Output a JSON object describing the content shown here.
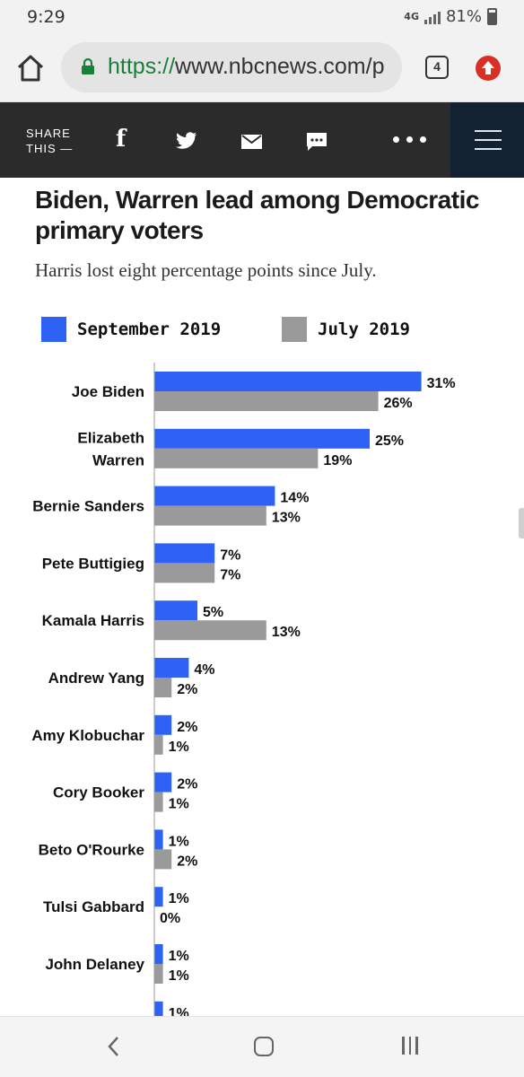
{
  "status_bar": {
    "time": "9:29",
    "network": "4G",
    "battery": "81%"
  },
  "browser": {
    "url_scheme": "https://",
    "url_rest": "www.nbcnews.com/p",
    "tab_count": "4"
  },
  "share_bar": {
    "label_line1": "SHARE",
    "label_line2": "THIS —",
    "facebook_glyph": "f",
    "icons": [
      "facebook-icon",
      "twitter-icon",
      "email-icon",
      "sms-icon",
      "more-icon",
      "menu-icon"
    ]
  },
  "article": {
    "headline": "Biden, Warren lead among Democratic primary voters",
    "subhead": "Harris lost eight percentage points since July."
  },
  "colors": {
    "september": "#2d62f5",
    "july": "#9a9a9a",
    "share_bar_bg": "#2b2b2b",
    "menu_bg": "#132233"
  },
  "chart_data": {
    "type": "bar",
    "orientation": "horizontal",
    "categories": [
      "Joe Biden",
      "Elizabeth Warren",
      "Bernie Sanders",
      "Pete Buttigieg",
      "Kamala Harris",
      "Andrew Yang",
      "Amy Klobuchar",
      "Cory Booker",
      "Beto O'Rourke",
      "Tulsi Gabbard",
      "John Delaney",
      ""
    ],
    "series": [
      {
        "name": "September 2019",
        "values": [
          31,
          25,
          14,
          7,
          5,
          4,
          2,
          2,
          1,
          1,
          1,
          1
        ]
      },
      {
        "name": "July 2019",
        "values": [
          26,
          19,
          13,
          7,
          13,
          2,
          1,
          1,
          2,
          0,
          1,
          null
        ]
      }
    ],
    "value_suffix": "%",
    "legend": "top-left"
  }
}
